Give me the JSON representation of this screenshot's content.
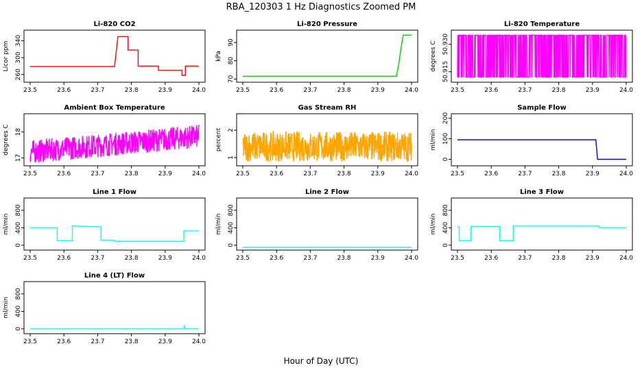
{
  "figure": {
    "title": "RBA_120303  1 Hz Diagnostics Zoomed PM",
    "xlabel": "Hour of Day (UTC)"
  },
  "chart_data": [
    {
      "type": "line",
      "title": "Li-820 CO2",
      "ylabel": "Licor ppm",
      "color": "#ff0000",
      "xlim": [
        23.5,
        24.0
      ],
      "ylim": [
        245,
        362
      ],
      "yticks": [
        260,
        300,
        340
      ],
      "xticks": [
        23.5,
        23.6,
        23.7,
        23.8,
        23.9,
        24.0
      ],
      "series": [
        {
          "name": "CO2",
          "x": [
            23.5,
            23.75,
            23.75,
            23.76,
            23.76,
            23.79,
            23.79,
            23.82,
            23.82,
            23.88,
            23.88,
            23.95,
            23.95,
            23.96,
            23.96,
            24.0
          ],
          "y": [
            279,
            279,
            279,
            350,
            350,
            350,
            318,
            318,
            280,
            280,
            270,
            270,
            258,
            258,
            280,
            280
          ]
        }
      ]
    },
    {
      "type": "line",
      "title": "Li-820 Pressure",
      "ylabel": "kPa",
      "color": "#00cc00",
      "xlim": [
        23.5,
        24.0
      ],
      "ylim": [
        69,
        96
      ],
      "yticks": [
        70,
        80,
        90
      ],
      "xticks": [
        23.5,
        23.6,
        23.7,
        23.8,
        23.9,
        24.0
      ],
      "series": [
        {
          "name": "Pressure",
          "x": [
            23.5,
            23.945,
            23.955,
            23.962,
            23.968,
            23.975,
            24.0
          ],
          "y": [
            71.5,
            71.5,
            71.5,
            78,
            86,
            94,
            94
          ]
        }
      ]
    },
    {
      "type": "line",
      "title": "Li-820 Temperature",
      "ylabel": "degrees C",
      "color": "#ff00ff",
      "xlim": [
        23.5,
        24.0
      ],
      "ylim": [
        50.91,
        50.937
      ],
      "yticks": [
        50.915,
        50.93
      ],
      "xticks": [
        23.5,
        23.6,
        23.7,
        23.8,
        23.9,
        24.0
      ],
      "series": [
        {
          "name": "Temperature",
          "x": [],
          "y": []
        }
      ]
    },
    {
      "type": "line",
      "title": "Ambient Box Temperature",
      "ylabel": "degrees C",
      "color": "#ff00ff",
      "xlim": [
        23.5,
        24.0
      ],
      "ylim": [
        16.75,
        18.65
      ],
      "yticks": [
        17.0,
        18.0
      ],
      "xticks": [
        23.5,
        23.6,
        23.7,
        23.8,
        23.9,
        24.0
      ],
      "series": [
        {
          "name": "Ambient",
          "x": [],
          "y": []
        }
      ]
    },
    {
      "type": "line",
      "title": "Gas Stream RH",
      "ylabel": "percent",
      "color": "#ffa500",
      "xlim": [
        23.5,
        24.0
      ],
      "ylim": [
        0.75,
        2.55
      ],
      "yticks": [
        1.0,
        2.0
      ],
      "xticks": [
        23.5,
        23.6,
        23.7,
        23.8,
        23.9,
        24.0
      ],
      "series": [
        {
          "name": "RH",
          "x": [],
          "y": []
        }
      ]
    },
    {
      "type": "line",
      "title": "Sample Flow",
      "ylabel": "ml/min",
      "color": "#0000ff",
      "xlim": [
        23.5,
        24.0
      ],
      "ylim": [
        -25,
        215
      ],
      "yticks": [
        0,
        100,
        200
      ],
      "xticks": [
        23.5,
        23.6,
        23.7,
        23.8,
        23.9,
        24.0
      ],
      "series": [
        {
          "name": "Sample Flow",
          "x": [
            23.5,
            23.91,
            23.915,
            24.0
          ],
          "y": [
            95,
            95,
            0,
            0
          ]
        }
      ]
    },
    {
      "type": "line",
      "title": "Line 1 Flow",
      "ylabel": "ml/min",
      "color": "#00ffff",
      "xlim": [
        23.5,
        24.0
      ],
      "ylim": [
        -80,
        1050
      ],
      "yticks": [
        0,
        400,
        800
      ],
      "xticks": [
        23.5,
        23.6,
        23.7,
        23.8,
        23.9,
        24.0
      ],
      "series": [
        {
          "name": "Line 1",
          "x": [
            23.5,
            23.58,
            23.58,
            23.625,
            23.625,
            23.71,
            23.71,
            23.75,
            23.75,
            23.955,
            23.955,
            24.0
          ],
          "y": [
            400,
            400,
            100,
            100,
            440,
            420,
            120,
            110,
            90,
            90,
            330,
            330
          ]
        }
      ]
    },
    {
      "type": "line",
      "title": "Line 2 Flow",
      "ylabel": "ml/min",
      "color": "#00ffff",
      "xlim": [
        23.5,
        24.0
      ],
      "ylim": [
        -80,
        1050
      ],
      "yticks": [
        0,
        400,
        800
      ],
      "xticks": [
        23.5,
        23.6,
        23.7,
        23.8,
        23.9,
        24.0
      ],
      "series": [
        {
          "name": "Line 2",
          "x": [
            23.5,
            24.0
          ],
          "y": [
            -50,
            -50
          ]
        }
      ]
    },
    {
      "type": "line",
      "title": "Line 3 Flow",
      "ylabel": "ml/min",
      "color": "#00ffff",
      "xlim": [
        23.5,
        24.0
      ],
      "ylim": [
        -80,
        1050
      ],
      "yticks": [
        0,
        400,
        800
      ],
      "xticks": [
        23.5,
        23.6,
        23.7,
        23.8,
        23.9,
        24.0
      ],
      "series": [
        {
          "name": "Line 3",
          "x": [
            23.5,
            23.505,
            23.505,
            23.54,
            23.54,
            23.625,
            23.625,
            23.665,
            23.665,
            23.92,
            23.92,
            24.0
          ],
          "y": [
            420,
            420,
            100,
            100,
            430,
            430,
            100,
            100,
            440,
            440,
            400,
            400
          ]
        }
      ]
    },
    {
      "type": "line",
      "title": "Line 4 (LT) Flow",
      "ylabel": "ml/min",
      "color": "#00ffff",
      "xlim": [
        23.5,
        24.0
      ],
      "ylim": [
        -80,
        1050
      ],
      "yticks": [
        0,
        400,
        800
      ],
      "xticks": [
        23.5,
        23.6,
        23.7,
        23.8,
        23.9,
        24.0
      ],
      "series": [
        {
          "name": "Line 4",
          "x": [
            23.5,
            23.955,
            23.957,
            23.96,
            23.962,
            24.0
          ],
          "y": [
            0,
            0,
            60,
            0,
            0,
            0
          ]
        }
      ]
    }
  ]
}
